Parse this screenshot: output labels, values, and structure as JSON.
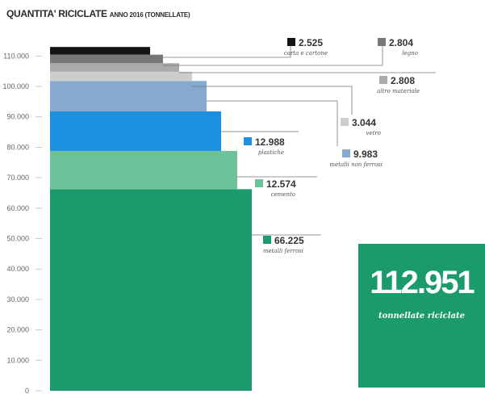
{
  "title": "QUANTITA' RICICLATE",
  "subtitle": "ANNO 2016 (TONNELLATE)",
  "total": {
    "value": "112.951",
    "label": "tonnellate riciclate"
  },
  "chart_data": {
    "type": "bar",
    "title": "QUANTITA' RICICLATE",
    "subtitle": "ANNO 2016 (TONNELLATE)",
    "ylim": [
      0,
      118000
    ],
    "yticks": [
      0,
      10000,
      20000,
      30000,
      40000,
      50000,
      60000,
      70000,
      80000,
      90000,
      100000,
      110000
    ],
    "ytick_labels": [
      "0",
      "10.000",
      "20.000",
      "30.000",
      "40.000",
      "50.000",
      "60.000",
      "70.000",
      "80.000",
      "90.000",
      "100.000",
      "110.000"
    ],
    "series": [
      {
        "name": "metalli ferrosi",
        "value": 66225,
        "label": "66.225",
        "color": "#1b9b6b"
      },
      {
        "name": "cemento",
        "value": 12574,
        "label": "12.574",
        "color": "#6cc39a"
      },
      {
        "name": "plastiche",
        "value": 12988,
        "label": "12.988",
        "color": "#1e90e0"
      },
      {
        "name": "metalli non ferrosi",
        "value": 9983,
        "label": "9.983",
        "color": "#86a9cf"
      },
      {
        "name": "vetro",
        "value": 3044,
        "label": "3.044",
        "color": "#cdcdcd"
      },
      {
        "name": "altro materiale",
        "value": 2808,
        "label": "2.808",
        "color": "#aaaaaa"
      },
      {
        "name": "legno",
        "value": 2804,
        "label": "2.804",
        "color": "#777777"
      },
      {
        "name": "carta e cartone",
        "value": 2525,
        "label": "2.525",
        "color": "#141414"
      }
    ]
  }
}
